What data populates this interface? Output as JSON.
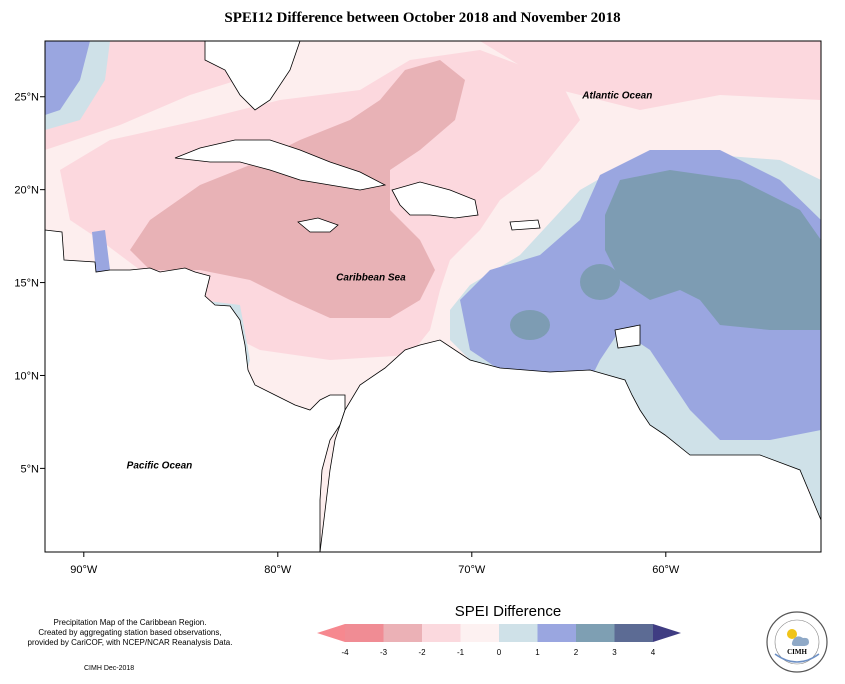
{
  "title": "SPEI12 Difference between October 2018 and November 2018",
  "map": {
    "lon_range": [
      -92,
      -52
    ],
    "lat_range": [
      0.5,
      28
    ],
    "x_ticks": [
      {
        "value": -90,
        "label": "90°W"
      },
      {
        "value": -80,
        "label": "80°W"
      },
      {
        "value": -70,
        "label": "70°W"
      },
      {
        "value": -60,
        "label": "60°W"
      }
    ],
    "y_ticks": [
      {
        "value": 25,
        "label": "25°N"
      },
      {
        "value": 20,
        "label": "20°N"
      },
      {
        "value": 15,
        "label": "15°N"
      },
      {
        "value": 10,
        "label": "10°N"
      },
      {
        "value": 5,
        "label": "5°N"
      }
    ],
    "labels": [
      {
        "text": "Atlantic Ocean",
        "lon": -62.5,
        "lat": 24.9
      },
      {
        "text": "Caribbean Sea",
        "lon": -75.2,
        "lat": 15.1
      },
      {
        "text": "Pacific Ocean",
        "lon": -86.1,
        "lat": 5.0
      }
    ]
  },
  "legend": {
    "title": "SPEI Difference",
    "ticks": [
      "-4",
      "-3",
      "-2",
      "-1",
      "0",
      "1",
      "2",
      "3",
      "4"
    ],
    "colors": [
      "#f08c94",
      "#ebb1b6",
      "#fbd9de",
      "#fdf1f1",
      "#cfe1e8",
      "#9aa6e0",
      "#7e9fb3",
      "#5c6b94"
    ],
    "end_low_color": "#f6888f",
    "end_high_color": "#3f3c82"
  },
  "credits": {
    "lines": [
      "Precipitation Map of the Caribbean Region.",
      "Created by aggregating station based observations,",
      "provided by CariCOF, with NCEP/NCAR Reanalysis Data."
    ],
    "date": "CIMH Dec-2018"
  },
  "logo": {
    "text": "CIMH",
    "ring_text": "Caribbean Institute for Meteorology and Hydrology"
  },
  "colors": {
    "neg2": "#e8b2b6",
    "neg1": "#fcd8de",
    "neg05": "#fdeeee",
    "zero": "#cfe1e8",
    "pos1": "#9aa6e0",
    "pos2": "#7d9cb3",
    "land": "#ffffff",
    "coast": "#000000"
  }
}
